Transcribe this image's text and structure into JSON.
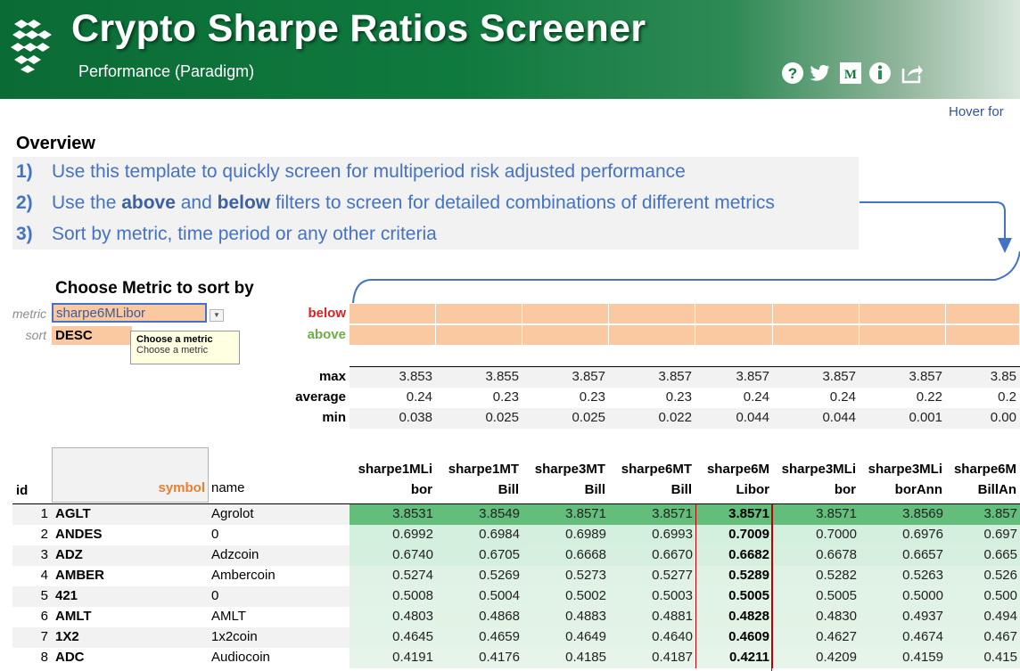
{
  "header": {
    "title": "Crypto Sharpe Ratios Screener",
    "subtitle": "Performance (Paradigm)",
    "icons": [
      "help-icon",
      "twitter-icon",
      "medium-icon",
      "info-icon",
      "share-icon"
    ],
    "hover_hint": "Hover for"
  },
  "overview": {
    "title": "Overview",
    "steps": [
      {
        "num": "1)",
        "parts": [
          {
            "t": "Use this template to quickly screen for multiperiod risk adjusted performance",
            "b": false
          }
        ]
      },
      {
        "num": "2)",
        "parts": [
          {
            "t": "Use the ",
            "b": false
          },
          {
            "t": "above",
            "b": true
          },
          {
            "t": " and ",
            "b": false
          },
          {
            "t": "below",
            "b": true
          },
          {
            "t": " filters to screen for detailed combinations of different metrics",
            "b": false
          }
        ]
      },
      {
        "num": "3)",
        "parts": [
          {
            "t": "Sort by metric, time period or any other criteria",
            "b": false
          }
        ]
      }
    ]
  },
  "chooser": {
    "title": "Choose Metric to sort by",
    "metric_label": "metric",
    "metric_value": "sharpe6MLibor",
    "sort_label": "sort",
    "sort_value": "DESC",
    "tooltip_title": "Choose a metric",
    "tooltip_body": "Choose a metric"
  },
  "filters": {
    "below_label": "below",
    "above_label": "above"
  },
  "stats": {
    "max_label": "max",
    "average_label": "average",
    "min_label": "min",
    "max": [
      "3.853",
      "3.855",
      "3.857",
      "3.857",
      "3.857",
      "3.857",
      "3.857",
      "3.85"
    ],
    "average": [
      "0.24",
      "0.23",
      "0.23",
      "0.23",
      "0.24",
      "0.24",
      "0.22",
      "0.2"
    ],
    "min": [
      "0.038",
      "0.025",
      "0.025",
      "0.022",
      "0.044",
      "0.044",
      "0.001",
      "0.00"
    ]
  },
  "table": {
    "id_header": "id",
    "symbol_header": "symbol",
    "name_header": "name",
    "columns": [
      {
        "l1": "sharpe1MLi",
        "l2": "bor"
      },
      {
        "l1": "sharpe1MT",
        "l2": "Bill"
      },
      {
        "l1": "sharpe3MT",
        "l2": "Bill"
      },
      {
        "l1": "sharpe6MT",
        "l2": "Bill"
      },
      {
        "l1": "sharpe6M",
        "l2": "Libor"
      },
      {
        "l1": "sharpe3MLi",
        "l2": "bor"
      },
      {
        "l1": "sharpe3MLi",
        "l2": "borAnn"
      },
      {
        "l1": "sharpe6M",
        "l2": "BillAn"
      }
    ],
    "selected_col": 4,
    "rows": [
      {
        "id": "1",
        "symbol": "AGLT",
        "name": "Agrolot",
        "vals": [
          "3.8531",
          "3.8549",
          "3.8571",
          "3.8571",
          "3.8571",
          "3.8571",
          "3.8569",
          "3.857"
        ]
      },
      {
        "id": "2",
        "symbol": "ANDES",
        "name": "0",
        "vals": [
          "0.6992",
          "0.6984",
          "0.6989",
          "0.6993",
          "0.7009",
          "0.7000",
          "0.6976",
          "0.697"
        ]
      },
      {
        "id": "3",
        "symbol": "ADZ",
        "name": "Adzcoin",
        "vals": [
          "0.6740",
          "0.6705",
          "0.6668",
          "0.6670",
          "0.6682",
          "0.6678",
          "0.6657",
          "0.665"
        ]
      },
      {
        "id": "4",
        "symbol": "AMBER",
        "name": "Ambercoin",
        "vals": [
          "0.5274",
          "0.5269",
          "0.5273",
          "0.5277",
          "0.5289",
          "0.5282",
          "0.5263",
          "0.526"
        ]
      },
      {
        "id": "5",
        "symbol": "421",
        "name": "0",
        "vals": [
          "0.5008",
          "0.5004",
          "0.5002",
          "0.5003",
          "0.5005",
          "0.5005",
          "0.5000",
          "0.500"
        ]
      },
      {
        "id": "6",
        "symbol": "AMLT",
        "name": "AMLT",
        "vals": [
          "0.4803",
          "0.4868",
          "0.4883",
          "0.4881",
          "0.4828",
          "0.4830",
          "0.4937",
          "0.494"
        ]
      },
      {
        "id": "7",
        "symbol": "1X2",
        "name": "1x2coin",
        "vals": [
          "0.4645",
          "0.4659",
          "0.4649",
          "0.4640",
          "0.4609",
          "0.4627",
          "0.4674",
          "0.467"
        ]
      },
      {
        "id": "8",
        "symbol": "ADC",
        "name": "Audiocoin",
        "vals": [
          "0.4191",
          "0.4176",
          "0.4185",
          "0.4187",
          "0.4211",
          "0.4209",
          "0.4159",
          "0.415"
        ]
      }
    ]
  },
  "colors": {
    "banner_green": "#0f7a3e",
    "link_blue": "#4472c4",
    "filter_fill": "#fbc9a1",
    "top_row_green": "#63be7b",
    "below_red": "#e02020",
    "above_green": "#70ad47",
    "symbol_orange": "#ed7d31"
  }
}
